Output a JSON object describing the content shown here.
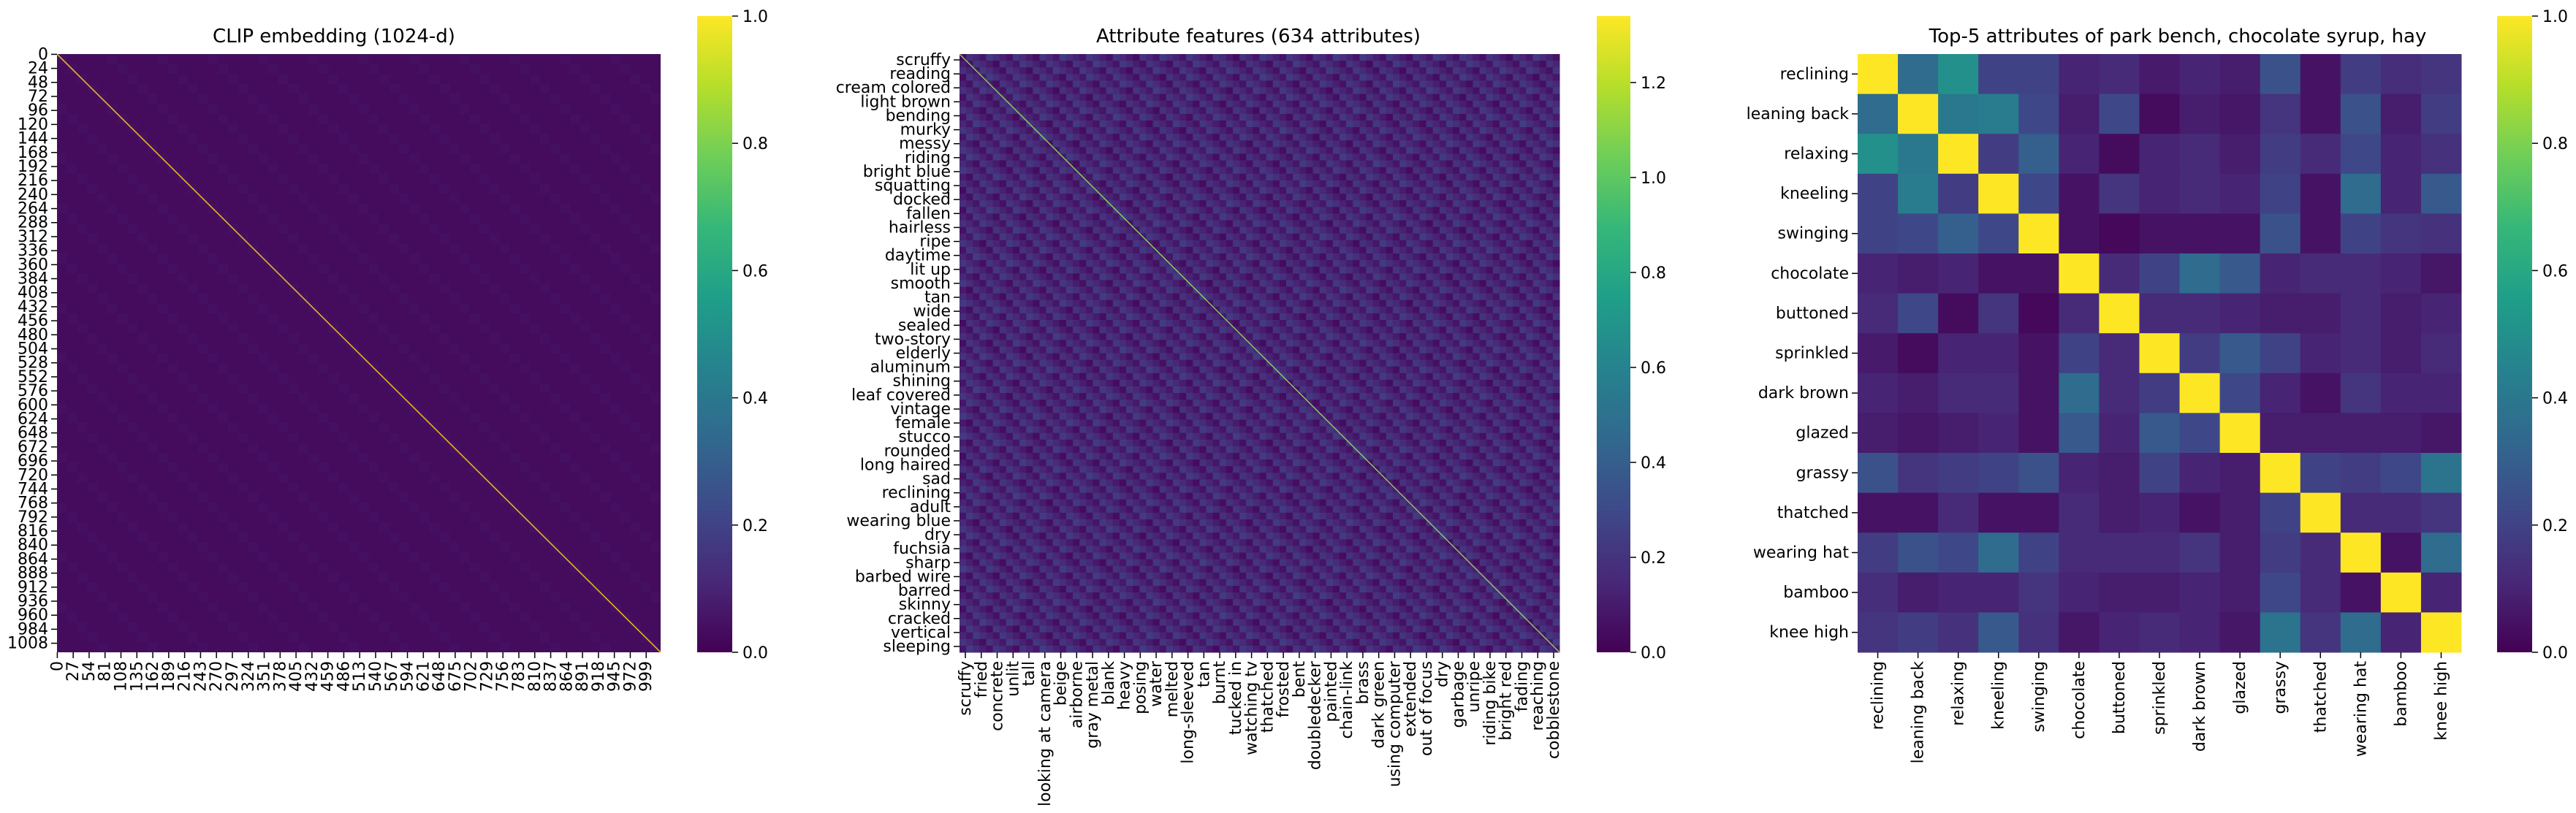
{
  "colormap": "viridis",
  "colormap_stops": [
    "#440154",
    "#482878",
    "#3e4989",
    "#31688e",
    "#26828e",
    "#1f9e89",
    "#35b779",
    "#6ece58",
    "#b5de2b",
    "#fde725"
  ],
  "chart_data": [
    {
      "type": "heatmap",
      "title": "CLIP embedding (1024-d)",
      "size": 1024,
      "offdiag_level": 0.03,
      "diag_value": 1.0,
      "y_ticks": [
        "0",
        "24",
        "48",
        "72",
        "96",
        "120",
        "144",
        "168",
        "192",
        "216",
        "240",
        "264",
        "288",
        "312",
        "336",
        "360",
        "384",
        "408",
        "432",
        "456",
        "480",
        "504",
        "528",
        "552",
        "576",
        "600",
        "624",
        "648",
        "672",
        "696",
        "720",
        "744",
        "768",
        "792",
        "816",
        "840",
        "864",
        "888",
        "912",
        "936",
        "960",
        "984",
        "1008"
      ],
      "x_ticks": [
        "0",
        "27",
        "54",
        "81",
        "108",
        "135",
        "162",
        "189",
        "216",
        "243",
        "270",
        "297",
        "324",
        "351",
        "378",
        "405",
        "432",
        "459",
        "486",
        "513",
        "540",
        "567",
        "594",
        "621",
        "648",
        "675",
        "702",
        "729",
        "756",
        "783",
        "810",
        "837",
        "864",
        "891",
        "918",
        "945",
        "972",
        "999"
      ],
      "colorbar": {
        "min": 0,
        "max": 1.0,
        "ticks": [
          "0.0",
          "0.2",
          "0.4",
          "0.6",
          "0.8",
          "1.0"
        ]
      }
    },
    {
      "type": "heatmap",
      "title": "Attribute features (634 attributes)",
      "size": 634,
      "offdiag_level": 0.12,
      "diag_value": 1.34,
      "y_ticks": [
        "scruffy",
        "reading",
        "cream colored",
        "light brown",
        "bending",
        "murky",
        "messy",
        "riding",
        "bright blue",
        "squatting",
        "docked",
        "fallen",
        "hairless",
        "ripe",
        "daytime",
        "lit up",
        "smooth",
        "tan",
        "wide",
        "sealed",
        "two-story",
        "elderly",
        "aluminum",
        "shining",
        "leaf covered",
        "vintage",
        "female",
        "stucco",
        "rounded",
        "long haired",
        "sad",
        "reclining",
        "adult",
        "wearing blue",
        "dry",
        "fuchsia",
        "sharp",
        "barbed wire",
        "barred",
        "skinny",
        "cracked",
        "vertical",
        "sleeping"
      ],
      "x_ticks": [
        "scruffy",
        "fried",
        "concrete",
        "unlit",
        "tall",
        "looking at camera",
        "beige",
        "airborne",
        "gray metal",
        "blank",
        "heavy",
        "posing",
        "water",
        "melted",
        "long-sleeved",
        "tan",
        "burnt",
        "tucked in",
        "watching tv",
        "thatched",
        "frosted",
        "bent",
        "doubledecker",
        "painted",
        "chain-link",
        "brass",
        "dark green",
        "using computer",
        "extended",
        "out of focus",
        "dry",
        "garbage",
        "unripe",
        "riding bike",
        "bright red",
        "fading",
        "reaching",
        "cobblestone"
      ],
      "colorbar": {
        "min": 0,
        "max": 1.34,
        "ticks": [
          "0.0",
          "0.2",
          "0.4",
          "0.6",
          "0.8",
          "1.0",
          "1.2"
        ]
      }
    },
    {
      "type": "heatmap",
      "title": "Top-5 attributes of park bench, chocolate syrup, hay",
      "labels": [
        "reclining",
        "leaning back",
        "relaxing",
        "kneeling",
        "swinging",
        "chocolate",
        "buttoned",
        "sprinkled",
        "dark brown",
        "glazed",
        "grassy",
        "thatched",
        "wearing hat",
        "bamboo",
        "knee high"
      ],
      "values": [
        [
          1.0,
          0.35,
          0.5,
          0.2,
          0.2,
          0.1,
          0.12,
          0.07,
          0.1,
          0.08,
          0.25,
          0.05,
          0.18,
          0.13,
          0.15
        ],
        [
          0.35,
          1.0,
          0.4,
          0.42,
          0.22,
          0.08,
          0.22,
          0.03,
          0.08,
          0.06,
          0.15,
          0.05,
          0.25,
          0.08,
          0.18
        ],
        [
          0.5,
          0.4,
          1.0,
          0.18,
          0.3,
          0.1,
          0.03,
          0.1,
          0.12,
          0.08,
          0.18,
          0.12,
          0.22,
          0.1,
          0.14
        ],
        [
          0.2,
          0.42,
          0.18,
          1.0,
          0.22,
          0.05,
          0.15,
          0.1,
          0.12,
          0.1,
          0.2,
          0.05,
          0.35,
          0.1,
          0.28
        ],
        [
          0.2,
          0.22,
          0.3,
          0.22,
          1.0,
          0.05,
          0.02,
          0.05,
          0.05,
          0.05,
          0.25,
          0.05,
          0.2,
          0.15,
          0.14
        ],
        [
          0.1,
          0.08,
          0.1,
          0.05,
          0.05,
          1.0,
          0.12,
          0.2,
          0.35,
          0.28,
          0.1,
          0.12,
          0.12,
          0.1,
          0.06
        ],
        [
          0.12,
          0.22,
          0.03,
          0.15,
          0.02,
          0.12,
          1.0,
          0.12,
          0.12,
          0.1,
          0.08,
          0.08,
          0.12,
          0.08,
          0.1
        ],
        [
          0.07,
          0.03,
          0.1,
          0.1,
          0.05,
          0.2,
          0.12,
          1.0,
          0.18,
          0.28,
          0.2,
          0.1,
          0.12,
          0.08,
          0.12
        ],
        [
          0.1,
          0.08,
          0.12,
          0.12,
          0.05,
          0.35,
          0.12,
          0.18,
          1.0,
          0.22,
          0.1,
          0.05,
          0.15,
          0.1,
          0.1
        ],
        [
          0.08,
          0.06,
          0.08,
          0.1,
          0.05,
          0.28,
          0.1,
          0.28,
          0.22,
          1.0,
          0.08,
          0.08,
          0.08,
          0.08,
          0.06
        ],
        [
          0.25,
          0.15,
          0.18,
          0.2,
          0.25,
          0.1,
          0.08,
          0.2,
          0.1,
          0.08,
          1.0,
          0.2,
          0.18,
          0.22,
          0.38
        ],
        [
          0.05,
          0.05,
          0.12,
          0.05,
          0.05,
          0.12,
          0.08,
          0.1,
          0.05,
          0.08,
          0.2,
          1.0,
          0.12,
          0.12,
          0.15
        ],
        [
          0.18,
          0.25,
          0.22,
          0.35,
          0.2,
          0.12,
          0.12,
          0.12,
          0.15,
          0.08,
          0.18,
          0.12,
          1.0,
          0.05,
          0.35
        ],
        [
          0.13,
          0.08,
          0.1,
          0.1,
          0.15,
          0.1,
          0.08,
          0.08,
          0.1,
          0.08,
          0.22,
          0.12,
          0.05,
          1.0,
          0.1
        ],
        [
          0.15,
          0.18,
          0.14,
          0.28,
          0.14,
          0.06,
          0.1,
          0.12,
          0.1,
          0.06,
          0.38,
          0.15,
          0.35,
          0.1,
          1.0
        ]
      ],
      "colorbar": {
        "min": 0,
        "max": 1.0,
        "ticks": [
          "0.0",
          "0.2",
          "0.4",
          "0.6",
          "0.8",
          "1.0"
        ]
      }
    }
  ]
}
